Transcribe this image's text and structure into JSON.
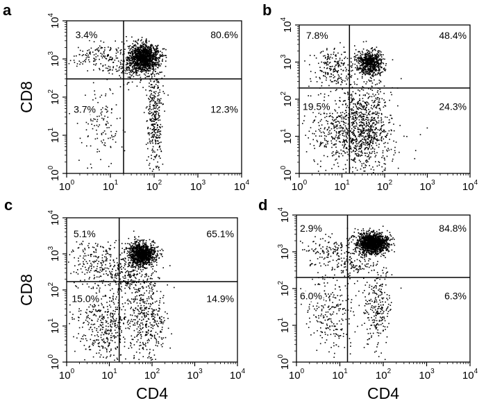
{
  "chart_data": [
    {
      "type": "scatter",
      "panel_label": "a",
      "xlabel": "",
      "ylabel": "CD8",
      "x_scale": "log",
      "y_scale": "log",
      "xlim": [
        1,
        10000
      ],
      "ylim": [
        1,
        10000
      ],
      "x_ticks": [
        {
          "base": "10",
          "exp": "0"
        },
        {
          "base": "10",
          "exp": "1"
        },
        {
          "base": "10",
          "exp": "2"
        },
        {
          "base": "10",
          "exp": "3"
        },
        {
          "base": "10",
          "exp": "4"
        }
      ],
      "y_ticks": [
        {
          "base": "10",
          "exp": "0"
        },
        {
          "base": "10",
          "exp": "1"
        },
        {
          "base": "10",
          "exp": "2"
        },
        {
          "base": "10",
          "exp": "3"
        },
        {
          "base": "10",
          "exp": "4"
        }
      ],
      "gate_x": 20,
      "gate_y": 300,
      "quadrants": {
        "upper_left": "3.4%",
        "upper_right": "80.6%",
        "lower_left": "3.7%",
        "lower_right": "12.3%"
      }
    },
    {
      "type": "scatter",
      "panel_label": "b",
      "xlabel": "",
      "ylabel": "",
      "x_scale": "log",
      "y_scale": "log",
      "xlim": [
        1,
        10000
      ],
      "ylim": [
        1,
        10000
      ],
      "x_ticks": [
        {
          "base": "10",
          "exp": "0"
        },
        {
          "base": "10",
          "exp": "1"
        },
        {
          "base": "10",
          "exp": "2"
        },
        {
          "base": "10",
          "exp": "3"
        },
        {
          "base": "10",
          "exp": "4"
        }
      ],
      "y_ticks": [
        {
          "base": "10",
          "exp": "0"
        },
        {
          "base": "10",
          "exp": "1"
        },
        {
          "base": "10",
          "exp": "2"
        },
        {
          "base": "10",
          "exp": "3"
        },
        {
          "base": "10",
          "exp": "4"
        }
      ],
      "gate_x": 15,
      "gate_y": 200,
      "quadrants": {
        "upper_left": "7.8%",
        "upper_right": "48.4%",
        "lower_left": "19.5%",
        "lower_right": "24.3%"
      }
    },
    {
      "type": "scatter",
      "panel_label": "c",
      "xlabel": "CD4",
      "ylabel": "CD8",
      "x_scale": "log",
      "y_scale": "log",
      "xlim": [
        1,
        10000
      ],
      "ylim": [
        1,
        10000
      ],
      "x_ticks": [
        {
          "base": "10",
          "exp": "0"
        },
        {
          "base": "10",
          "exp": "1"
        },
        {
          "base": "10",
          "exp": "2"
        },
        {
          "base": "10",
          "exp": "3"
        },
        {
          "base": "10",
          "exp": "4"
        }
      ],
      "y_ticks": [
        {
          "base": "10",
          "exp": "0"
        },
        {
          "base": "10",
          "exp": "1"
        },
        {
          "base": "10",
          "exp": "2"
        },
        {
          "base": "10",
          "exp": "3"
        },
        {
          "base": "10",
          "exp": "4"
        }
      ],
      "gate_x": 17,
      "gate_y": 170,
      "quadrants": {
        "upper_left": "5.1%",
        "upper_right": "65.1%",
        "lower_left": "15.0%",
        "lower_right": "14.9%"
      }
    },
    {
      "type": "scatter",
      "panel_label": "d",
      "xlabel": "CD4",
      "ylabel": "",
      "x_scale": "log",
      "y_scale": "log",
      "xlim": [
        1,
        10000
      ],
      "ylim": [
        1,
        10000
      ],
      "x_ticks": [
        {
          "base": "10",
          "exp": "0"
        },
        {
          "base": "10",
          "exp": "1"
        },
        {
          "base": "10",
          "exp": "2"
        },
        {
          "base": "10",
          "exp": "3"
        },
        {
          "base": "10",
          "exp": "4"
        }
      ],
      "y_ticks": [
        {
          "base": "10",
          "exp": "0"
        },
        {
          "base": "10",
          "exp": "1"
        },
        {
          "base": "10",
          "exp": "2"
        },
        {
          "base": "10",
          "exp": "3"
        },
        {
          "base": "10",
          "exp": "4"
        }
      ],
      "gate_x": 15,
      "gate_y": 200,
      "quadrants": {
        "upper_left": "2.9%",
        "upper_right": "84.8%",
        "lower_left": "6.0%",
        "lower_right": "6.3%"
      }
    }
  ]
}
